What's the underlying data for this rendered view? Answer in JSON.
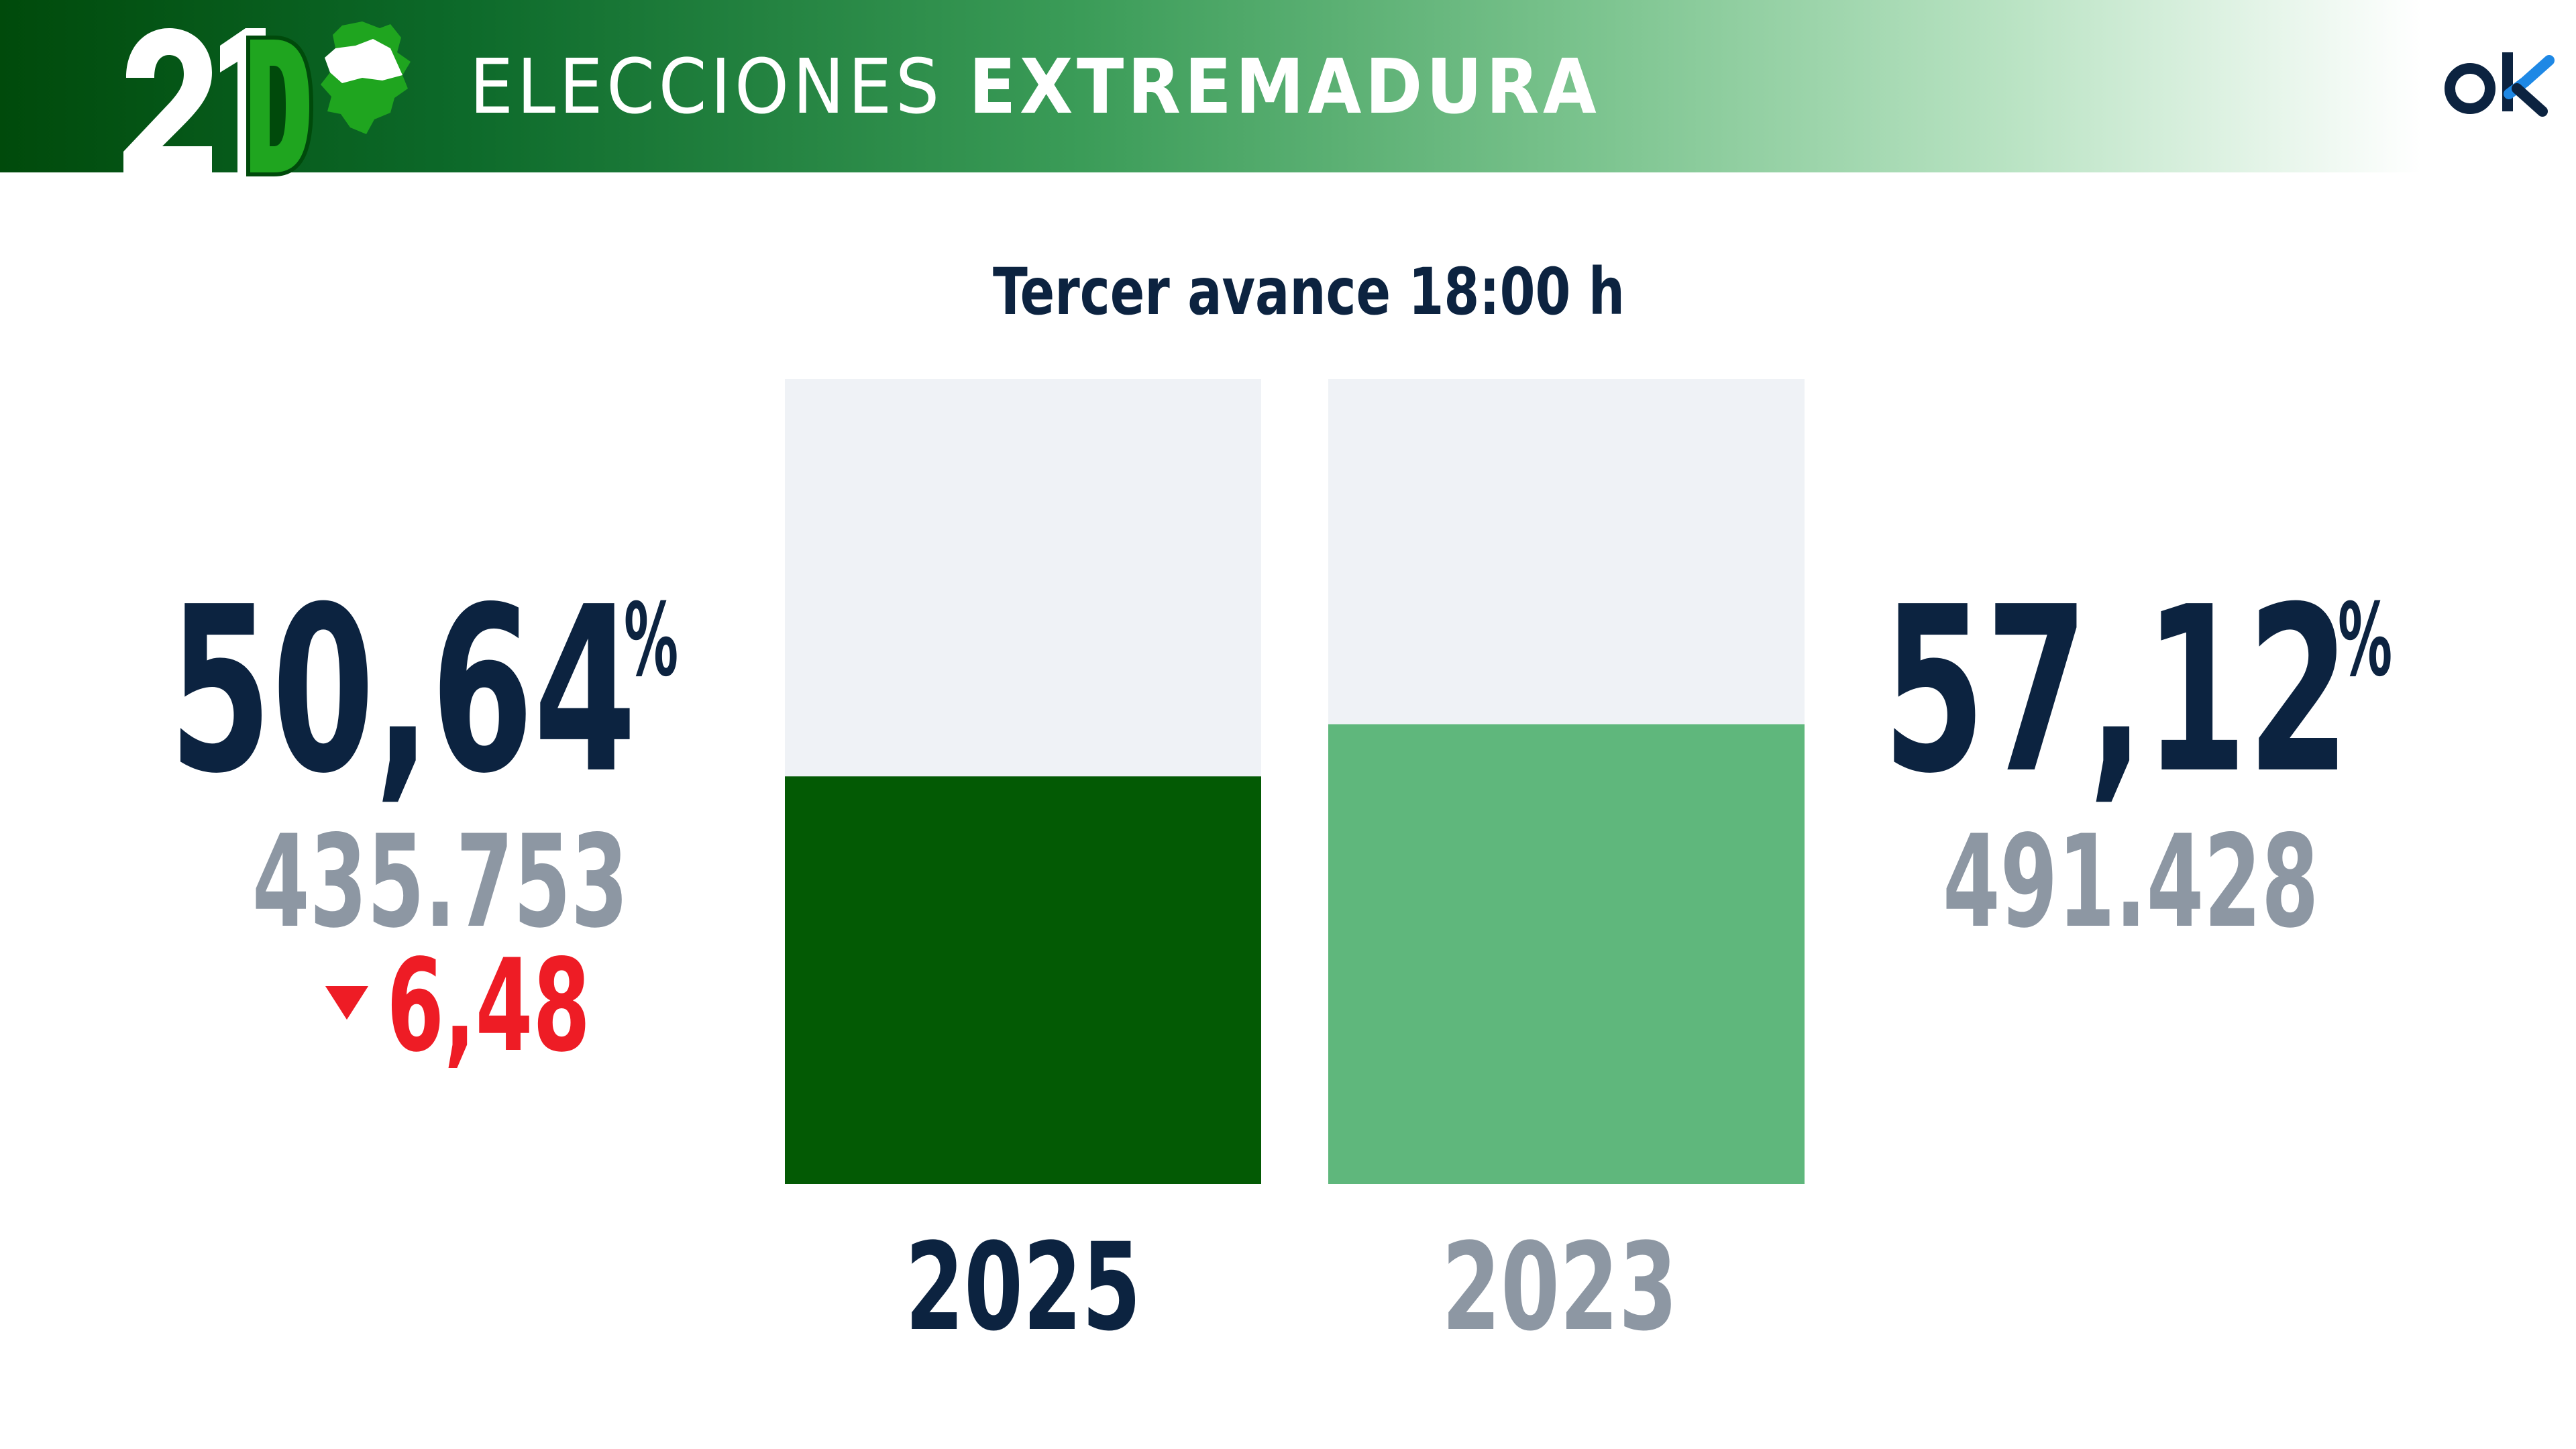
{
  "header": {
    "logo_text": "21D",
    "title_light": "ELECCIONES",
    "title_bold": "EXTREMADURA",
    "brand_logo": "ok"
  },
  "subtitle": "Tercer avance 18:00 h",
  "left_stats": {
    "percent": "50,64",
    "percent_sign": "%",
    "votes": "435.753",
    "change": "6,48",
    "change_icon": "down-triangle-icon"
  },
  "right_stats": {
    "percent": "57,12",
    "percent_sign": "%",
    "votes": "491.428"
  },
  "colors": {
    "header_dark_green": "#004a0b",
    "bar_2025": "#035a04",
    "bar_2023": "#5fb77c",
    "bar_background": "#eff2f6",
    "text_navy": "#0c2340",
    "text_gray": "#8d97a3",
    "change_red": "#ee1c25",
    "region_map_green": "#1fa51f"
  },
  "chart_data": {
    "type": "bar",
    "categories": [
      "2025",
      "2023"
    ],
    "values": [
      50.64,
      57.12
    ],
    "ylim": [
      0,
      100
    ],
    "title": "Tercer avance 18:00 h",
    "xlabel": "",
    "ylabel": "",
    "grid": false,
    "legend": "none"
  }
}
